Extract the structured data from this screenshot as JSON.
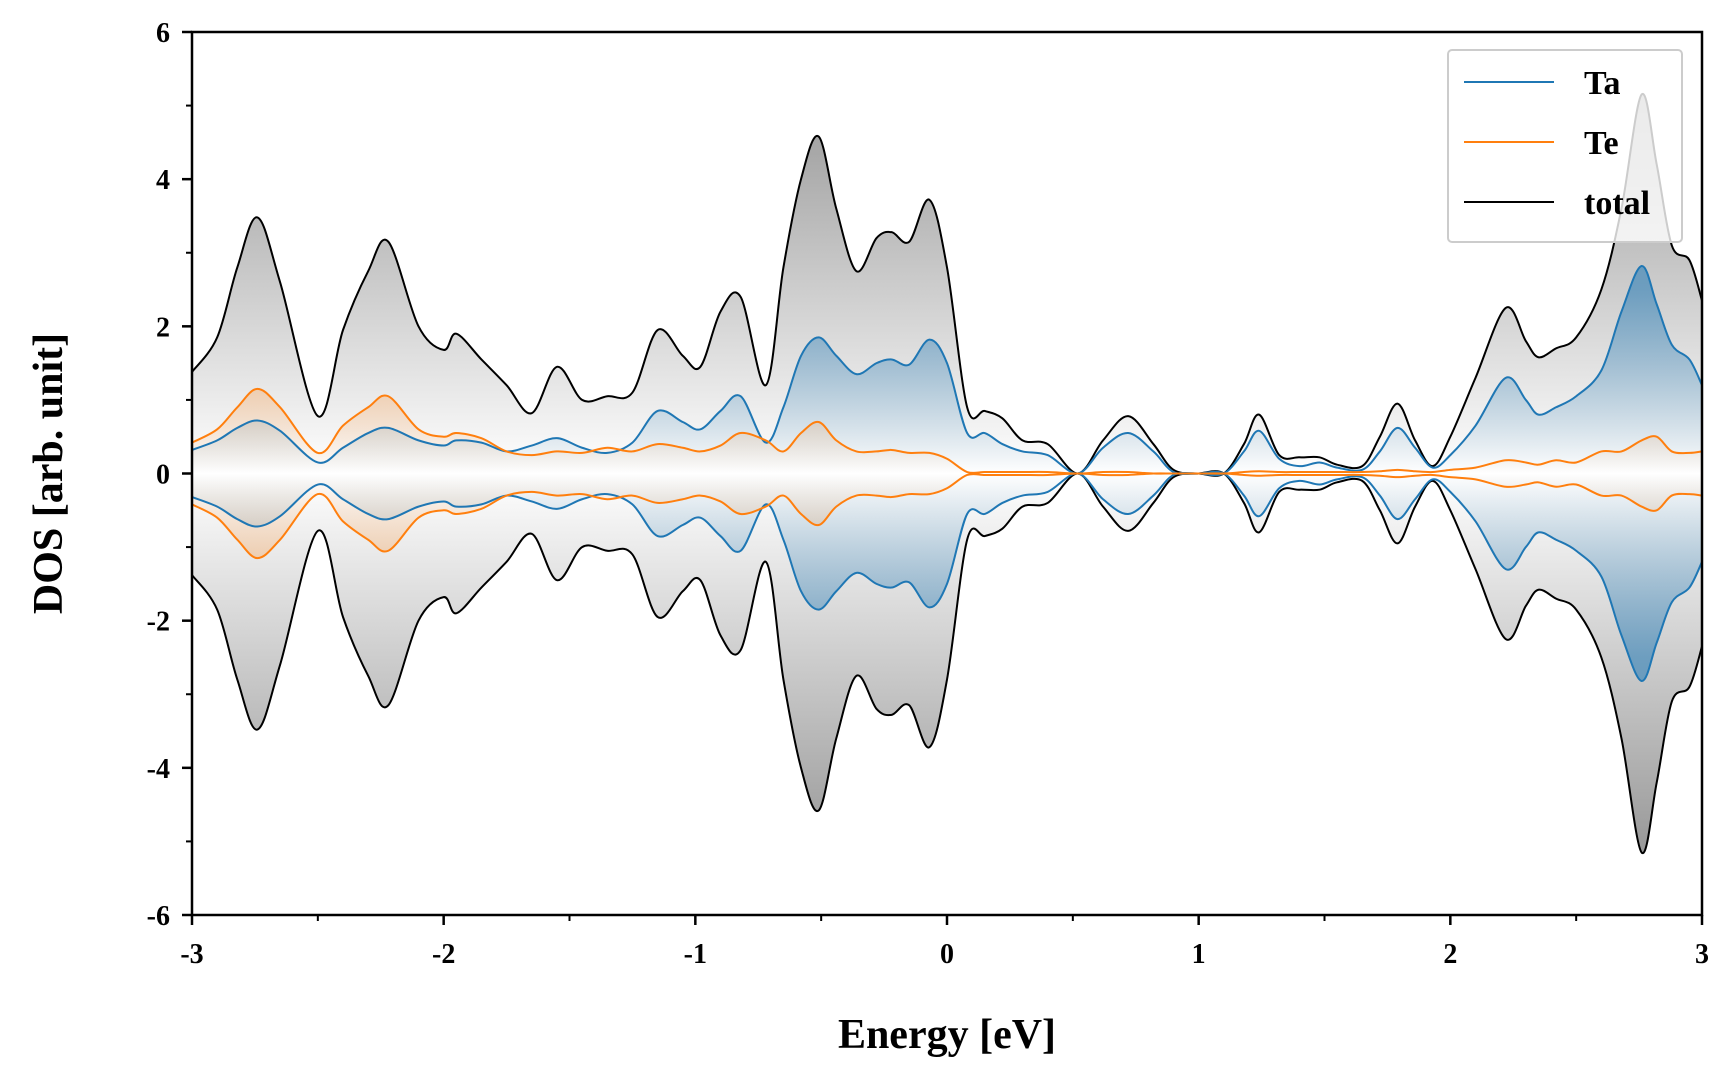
{
  "chart_data": {
    "type": "line",
    "xlabel": "Energy [eV]",
    "ylabel": "DOS [arb. unit]",
    "xlim": [
      -3,
      3
    ],
    "ylim": [
      -6,
      6
    ],
    "xticks": [
      -3,
      -2,
      -1,
      0,
      1,
      2,
      3
    ],
    "yticks": [
      -6,
      -4,
      -2,
      0,
      2,
      4,
      6
    ],
    "xtick_labels": [
      "-3",
      "-2",
      "-1",
      "0",
      "1",
      "2",
      "3"
    ],
    "ytick_labels": [
      "-6",
      "-4",
      "-2",
      "0",
      "2",
      "4",
      "6"
    ],
    "mirrored_negative": true,
    "grid": false,
    "legend_position": "top-right",
    "series": [
      {
        "name": "Ta",
        "color": "#1f77b4",
        "fill": "#1f77b4",
        "x": [
          -3.0,
          -2.9,
          -2.82,
          -2.74,
          -2.65,
          -2.5,
          -2.4,
          -2.3,
          -2.22,
          -2.1,
          -2.0,
          -1.95,
          -1.85,
          -1.75,
          -1.65,
          -1.55,
          -1.45,
          -1.35,
          -1.25,
          -1.15,
          -1.05,
          -0.98,
          -0.9,
          -0.82,
          -0.72,
          -0.65,
          -0.58,
          -0.51,
          -0.44,
          -0.36,
          -0.28,
          -0.22,
          -0.15,
          -0.07,
          0.0,
          0.08,
          0.15,
          0.22,
          0.3,
          0.4,
          0.52,
          0.62,
          0.72,
          0.82,
          0.9,
          1.0,
          1.1,
          1.18,
          1.24,
          1.32,
          1.4,
          1.48,
          1.55,
          1.65,
          1.72,
          1.79,
          1.86,
          1.93,
          2.0,
          2.1,
          2.22,
          2.3,
          2.35,
          2.42,
          2.5,
          2.6,
          2.68,
          2.76,
          2.82,
          2.88,
          2.95,
          3.0
        ],
        "values": [
          0.32,
          0.45,
          0.62,
          0.72,
          0.58,
          0.15,
          0.35,
          0.55,
          0.62,
          0.45,
          0.38,
          0.45,
          0.42,
          0.3,
          0.38,
          0.48,
          0.35,
          0.28,
          0.42,
          0.85,
          0.7,
          0.6,
          0.85,
          1.05,
          0.42,
          0.9,
          1.6,
          1.85,
          1.6,
          1.35,
          1.5,
          1.55,
          1.48,
          1.82,
          1.5,
          0.55,
          0.55,
          0.4,
          0.3,
          0.25,
          0.0,
          0.35,
          0.55,
          0.3,
          0.02,
          0.0,
          0.0,
          0.3,
          0.58,
          0.2,
          0.1,
          0.15,
          0.08,
          0.05,
          0.3,
          0.62,
          0.35,
          0.08,
          0.25,
          0.65,
          1.3,
          1.0,
          0.8,
          0.9,
          1.05,
          1.4,
          2.2,
          2.82,
          2.3,
          1.75,
          1.55,
          1.2
        ]
      },
      {
        "name": "Te",
        "color": "#ff7f0e",
        "fill": "#ff7f0e",
        "x": [
          -3.0,
          -2.9,
          -2.82,
          -2.74,
          -2.65,
          -2.5,
          -2.4,
          -2.3,
          -2.22,
          -2.1,
          -2.0,
          -1.95,
          -1.85,
          -1.75,
          -1.65,
          -1.55,
          -1.45,
          -1.35,
          -1.25,
          -1.15,
          -1.05,
          -0.98,
          -0.9,
          -0.82,
          -0.72,
          -0.65,
          -0.58,
          -0.51,
          -0.44,
          -0.36,
          -0.28,
          -0.22,
          -0.15,
          -0.07,
          0.0,
          0.08,
          0.15,
          0.22,
          0.3,
          0.4,
          0.52,
          0.62,
          0.72,
          0.82,
          0.9,
          1.0,
          1.1,
          1.18,
          1.24,
          1.32,
          1.4,
          1.48,
          1.55,
          1.65,
          1.72,
          1.79,
          1.86,
          1.93,
          2.0,
          2.1,
          2.22,
          2.3,
          2.35,
          2.42,
          2.5,
          2.6,
          2.68,
          2.76,
          2.82,
          2.88,
          2.95,
          3.0
        ],
        "values": [
          0.42,
          0.6,
          0.9,
          1.15,
          0.9,
          0.28,
          0.65,
          0.9,
          1.05,
          0.6,
          0.5,
          0.55,
          0.48,
          0.3,
          0.25,
          0.3,
          0.28,
          0.35,
          0.3,
          0.4,
          0.35,
          0.3,
          0.38,
          0.55,
          0.45,
          0.3,
          0.55,
          0.7,
          0.45,
          0.3,
          0.3,
          0.32,
          0.28,
          0.28,
          0.2,
          0.02,
          0.02,
          0.02,
          0.02,
          0.02,
          0.0,
          0.02,
          0.02,
          0.0,
          0.0,
          0.0,
          0.0,
          0.02,
          0.03,
          0.02,
          0.02,
          0.02,
          0.02,
          0.02,
          0.03,
          0.05,
          0.03,
          0.02,
          0.05,
          0.08,
          0.18,
          0.15,
          0.12,
          0.18,
          0.15,
          0.3,
          0.3,
          0.45,
          0.5,
          0.3,
          0.28,
          0.3
        ]
      },
      {
        "name": "total",
        "color": "#000000",
        "fill": "#7a7a7a",
        "x": [
          -3.0,
          -2.9,
          -2.82,
          -2.74,
          -2.65,
          -2.5,
          -2.4,
          -2.3,
          -2.22,
          -2.1,
          -2.0,
          -1.95,
          -1.85,
          -1.75,
          -1.65,
          -1.55,
          -1.45,
          -1.35,
          -1.25,
          -1.15,
          -1.05,
          -0.98,
          -0.9,
          -0.82,
          -0.72,
          -0.65,
          -0.58,
          -0.51,
          -0.44,
          -0.36,
          -0.28,
          -0.22,
          -0.15,
          -0.07,
          0.0,
          0.08,
          0.15,
          0.22,
          0.3,
          0.4,
          0.52,
          0.62,
          0.72,
          0.82,
          0.9,
          1.0,
          1.1,
          1.18,
          1.24,
          1.32,
          1.4,
          1.48,
          1.55,
          1.65,
          1.72,
          1.79,
          1.86,
          1.93,
          2.0,
          2.1,
          2.22,
          2.3,
          2.35,
          2.42,
          2.5,
          2.6,
          2.68,
          2.76,
          2.82,
          2.88,
          2.95,
          3.0
        ],
        "values": [
          1.38,
          1.85,
          2.8,
          3.48,
          2.6,
          0.78,
          1.95,
          2.75,
          3.15,
          2.0,
          1.68,
          1.9,
          1.55,
          1.2,
          0.82,
          1.45,
          1.0,
          1.05,
          1.1,
          1.95,
          1.6,
          1.45,
          2.2,
          2.4,
          1.2,
          2.8,
          4.0,
          4.58,
          3.6,
          2.75,
          3.2,
          3.28,
          3.15,
          3.72,
          2.8,
          0.9,
          0.85,
          0.75,
          0.45,
          0.4,
          0.0,
          0.45,
          0.78,
          0.4,
          0.05,
          0.0,
          0.0,
          0.4,
          0.8,
          0.25,
          0.22,
          0.22,
          0.12,
          0.1,
          0.5,
          0.95,
          0.45,
          0.1,
          0.5,
          1.3,
          2.25,
          1.8,
          1.58,
          1.7,
          1.85,
          2.5,
          3.6,
          5.15,
          4.2,
          3.1,
          2.9,
          2.35
        ]
      }
    ]
  }
}
